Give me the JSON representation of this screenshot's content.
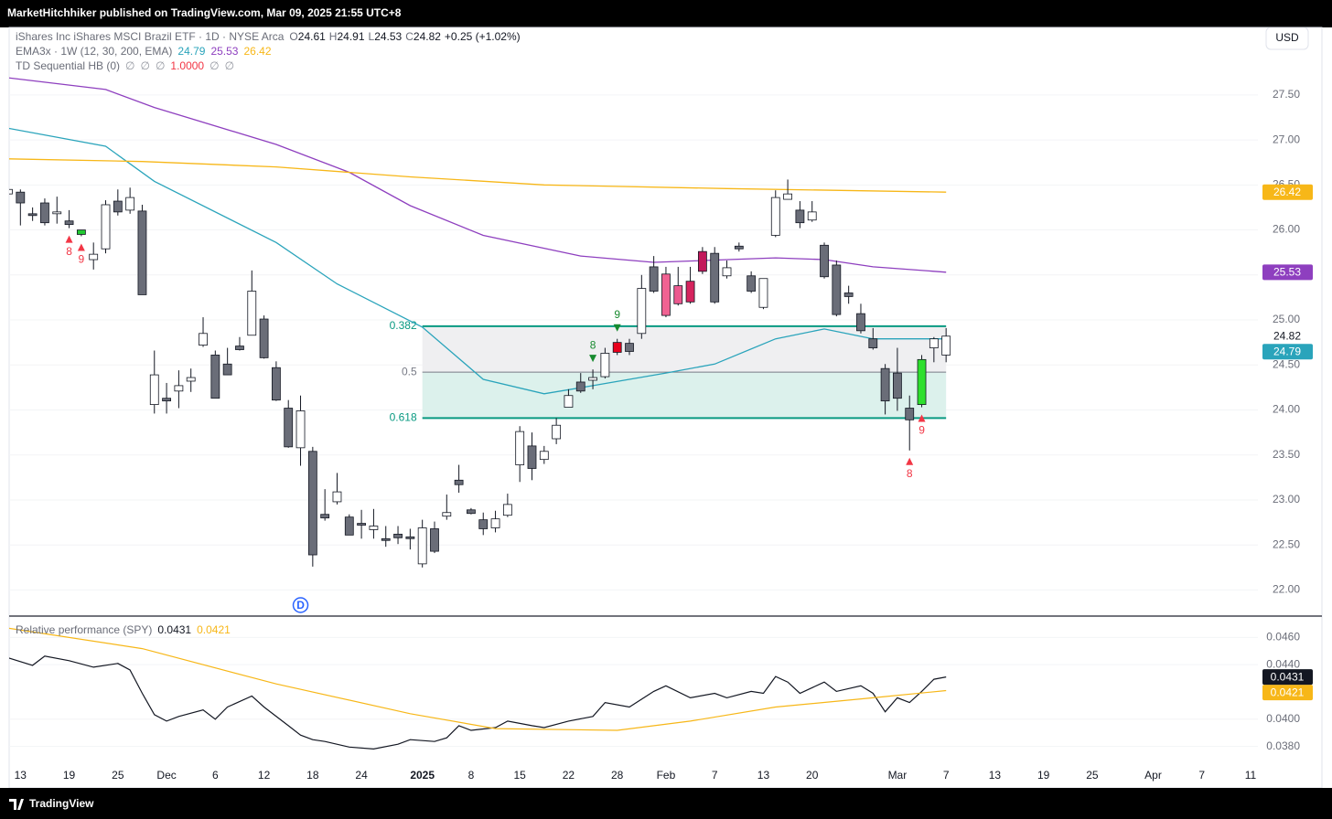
{
  "header": "MarketHitchhiker published on TradingView.com, Mar 09, 2025 21:55 UTC+8",
  "currency": "USD",
  "footer": "TradingView",
  "chart_data": [
    {
      "type": "candlestick",
      "title": "iShares Inc iShares MSCI Brazil ETF · 1D · NYSE Arca",
      "open_label": "O",
      "high_label": "H",
      "low_label": "L",
      "close_label": "C",
      "open": 24.61,
      "high": 24.91,
      "low": 24.53,
      "close": 24.82,
      "change_label": "+0.25 (+1.02%)",
      "ylim": [
        21.72,
        28.25
      ],
      "yticks": [
        {
          "value": 22,
          "label": "22.00"
        },
        {
          "value": 22.5,
          "label": "22.50"
        },
        {
          "value": 23,
          "label": "23.00"
        },
        {
          "value": 23.5,
          "label": "23.50"
        },
        {
          "value": 24,
          "label": "24.00"
        },
        {
          "value": 24.5,
          "label": "24.50"
        },
        {
          "value": 25,
          "label": "25.00"
        },
        {
          "value": 25.5,
          "label": "25.50"
        },
        {
          "value": 26,
          "label": "26.00"
        },
        {
          "value": 26.5,
          "label": "26.50"
        },
        {
          "value": 27,
          "label": "27.00"
        },
        {
          "value": 27.5,
          "label": "27.50"
        }
      ],
      "xlim": [
        0,
        102.6
      ],
      "xticks": [
        {
          "value": 1,
          "label": "13"
        },
        {
          "value": 5,
          "label": "19"
        },
        {
          "value": 9,
          "label": "25"
        },
        {
          "value": 13,
          "label": "Dec"
        },
        {
          "value": 17,
          "label": "6"
        },
        {
          "value": 21,
          "label": "12"
        },
        {
          "value": 25,
          "label": "18"
        },
        {
          "value": 29,
          "label": "24"
        },
        {
          "value": 34,
          "label": "2025"
        },
        {
          "value": 38,
          "label": "8"
        },
        {
          "value": 42,
          "label": "15"
        },
        {
          "value": 46,
          "label": "22"
        },
        {
          "value": 50,
          "label": "28"
        },
        {
          "value": 54,
          "label": "Feb"
        },
        {
          "value": 58,
          "label": "7"
        },
        {
          "value": 62,
          "label": "13"
        },
        {
          "value": 66,
          "label": "20"
        },
        {
          "value": 73,
          "label": "Mar"
        },
        {
          "value": 77,
          "label": "7"
        },
        {
          "value": 81,
          "label": "13"
        },
        {
          "value": 85,
          "label": "19"
        },
        {
          "value": 89,
          "label": "25"
        },
        {
          "value": 94,
          "label": "Apr"
        },
        {
          "value": 98,
          "label": "7"
        },
        {
          "value": 102,
          "label": "11"
        }
      ],
      "up_color": "#ffffff",
      "down_color": "#6a6d78",
      "border_color": "#131722",
      "candles": {
        "open": [
          26.4,
          26.42,
          26.18,
          26.3,
          26.18,
          26.1,
          25.95,
          25.67,
          25.79,
          26.32,
          26.22,
          26.21,
          24.06,
          24.13,
          24.21,
          24.32,
          24.72,
          24.61,
          24.51,
          24.71,
          24.83,
          25.01,
          24.47,
          24.02,
          23.58,
          23.54,
          22.84,
          22.98,
          22.81,
          22.74,
          22.67,
          22.57,
          22.62,
          22.59,
          22.29,
          22.68,
          22.82,
          23.22,
          22.89,
          22.78,
          22.69,
          22.83,
          23.39,
          23.6,
          23.45,
          23.68,
          24.03,
          24.31,
          24.33,
          24.37,
          24.75,
          24.74,
          24.85,
          25.59,
          25.51,
          25.38,
          25.43,
          25.76,
          25.74,
          25.49,
          25.82,
          25.49,
          25.14,
          25.94,
          26.34,
          26.22,
          26.11,
          25.83,
          25.61,
          25.3,
          25.07,
          24.79,
          24.46,
          24.41,
          24.02,
          24.06,
          24.69,
          24.61
        ],
        "high": [
          26.5,
          26.45,
          26.25,
          26.35,
          26.37,
          26.22,
          26.0,
          25.86,
          26.33,
          26.45,
          26.47,
          26.28,
          24.66,
          24.3,
          24.44,
          24.46,
          25.03,
          24.66,
          24.69,
          24.81,
          25.55,
          25.05,
          24.54,
          24.11,
          24.16,
          23.59,
          23.12,
          23.3,
          22.84,
          22.89,
          22.9,
          22.71,
          22.71,
          22.68,
          22.78,
          22.76,
          23.06,
          23.39,
          22.91,
          22.86,
          22.88,
          23.07,
          23.82,
          23.75,
          23.6,
          23.91,
          24.23,
          24.41,
          24.45,
          24.69,
          24.79,
          24.79,
          25.5,
          25.71,
          25.59,
          25.59,
          25.59,
          25.81,
          25.81,
          25.66,
          25.86,
          25.54,
          25.46,
          26.44,
          26.56,
          26.32,
          26.32,
          25.86,
          25.66,
          25.38,
          25.18,
          24.91,
          24.51,
          24.69,
          24.16,
          24.61,
          24.81,
          24.91
        ],
        "low": [
          26.35,
          26.05,
          26.1,
          26.05,
          26.07,
          26.02,
          25.93,
          25.56,
          25.74,
          26.16,
          26.18,
          25.28,
          23.96,
          23.96,
          24.02,
          24.2,
          24.7,
          24.13,
          24.39,
          24.66,
          24.83,
          24.57,
          24.1,
          23.58,
          23.38,
          22.26,
          22.77,
          22.95,
          22.61,
          22.57,
          22.57,
          22.48,
          22.51,
          22.45,
          22.25,
          22.41,
          22.78,
          23.08,
          22.84,
          22.61,
          22.64,
          22.81,
          23.2,
          23.22,
          23.4,
          23.62,
          24.03,
          24.19,
          24.23,
          24.35,
          24.61,
          24.61,
          24.79,
          25.3,
          25.03,
          25.16,
          25.18,
          25.51,
          25.18,
          25.46,
          25.76,
          25.3,
          25.12,
          25.92,
          26.34,
          26.02,
          26.09,
          25.46,
          25.04,
          25.18,
          24.85,
          24.67,
          23.95,
          23.99,
          23.55,
          24.03,
          24.53,
          24.53
        ],
        "close": [
          26.45,
          26.3,
          26.16,
          26.08,
          26.2,
          26.06,
          26.0,
          25.73,
          26.28,
          26.2,
          26.36,
          25.28,
          24.39,
          24.1,
          24.27,
          24.36,
          24.85,
          24.13,
          24.39,
          24.67,
          25.32,
          24.58,
          24.11,
          23.59,
          23.99,
          22.39,
          22.8,
          23.09,
          22.61,
          22.72,
          22.71,
          22.55,
          22.58,
          22.57,
          22.69,
          22.43,
          22.86,
          23.17,
          22.85,
          22.68,
          22.79,
          22.95,
          23.76,
          23.35,
          23.54,
          23.83,
          24.16,
          24.21,
          24.36,
          24.63,
          24.64,
          24.65,
          25.35,
          25.32,
          25.05,
          25.18,
          25.2,
          25.54,
          25.2,
          25.58,
          25.79,
          25.32,
          25.46,
          26.36,
          26.4,
          26.08,
          26.2,
          25.48,
          25.06,
          25.26,
          24.88,
          24.69,
          24.1,
          24.13,
          23.89,
          24.56,
          24.79,
          24.82
        ],
        "highlight": [
          {
            "index": 6,
            "color": "#22c932"
          },
          {
            "index": 50,
            "color": "#e8001c"
          },
          {
            "index": 54,
            "color": "#f06292"
          },
          {
            "index": 55,
            "color": "#ec5a8f"
          },
          {
            "index": 56,
            "color": "#d6245e"
          },
          {
            "index": 57,
            "color": "#c2185b"
          },
          {
            "index": 75,
            "color": "#2ee02e"
          }
        ]
      },
      "ema": {
        "title": "EMA3x · 1W (12, 30, 200, EMA)",
        "series": [
          {
            "color": "#2aa4bb",
            "x": [
              0,
              8,
              12,
              22,
              27,
              34,
              39,
              44,
              48,
              54,
              58,
              63,
              67,
              71,
              77
            ],
            "values": [
              27.13,
              26.93,
              26.54,
              25.86,
              25.4,
              24.92,
              24.34,
              24.18,
              24.27,
              24.41,
              24.51,
              24.79,
              24.9,
              24.79,
              24.79
            ]
          },
          {
            "color": "#8e3fbf",
            "x": [
              0,
              8,
              12,
              22,
              28,
              33,
              39,
              47,
              53,
              63,
              67,
              71,
              77
            ],
            "values": [
              27.69,
              27.56,
              27.36,
              26.95,
              26.64,
              26.27,
              25.94,
              25.71,
              25.64,
              25.69,
              25.67,
              25.59,
              25.53
            ]
          },
          {
            "color": "#f7b718",
            "x": [
              0,
              11,
              22,
              33,
              44,
              59,
              77
            ],
            "values": [
              26.79,
              26.76,
              26.7,
              26.59,
              26.5,
              26.46,
              26.42
            ]
          }
        ]
      },
      "td": {
        "title": "TD Sequential HB (0)",
        "legend_values": [
          {
            "text": "∅",
            "color": "#9598a1"
          },
          {
            "text": "∅",
            "color": "#9598a1"
          },
          {
            "text": "∅",
            "color": "#9598a1"
          },
          {
            "text": "1.0000",
            "color": "#f23645"
          },
          {
            "text": "∅",
            "color": "#9598a1"
          },
          {
            "text": "∅",
            "color": "#9598a1"
          }
        ],
        "labels": [
          {
            "index": 5,
            "label": "8",
            "position": "below",
            "color": "#f23645"
          },
          {
            "index": 6,
            "label": "9",
            "position": "below",
            "color": "#f23645"
          },
          {
            "index": 48,
            "label": "8",
            "position": "above",
            "color": "#178a2e"
          },
          {
            "index": 50,
            "label": "9",
            "position": "above",
            "color": "#178a2e"
          },
          {
            "index": 74,
            "label": "8",
            "position": "below",
            "color": "#f23645"
          },
          {
            "index": 75,
            "label": "9",
            "position": "below",
            "color": "#f23645"
          }
        ]
      },
      "fib": {
        "x": [
          34,
          77
        ],
        "levels": [
          {
            "value": 24.93,
            "label": "0.382",
            "color": "#089981"
          },
          {
            "value": 24.42,
            "label": "0.5",
            "color": "#787b86"
          },
          {
            "value": 23.91,
            "label": "0.618",
            "color": "#089981"
          }
        ],
        "fills": [
          "#efeff1",
          "#dcf1ec"
        ]
      },
      "dividend": {
        "index": 24,
        "label": "D",
        "color": "#2962ff"
      }
    },
    {
      "type": "line",
      "title": "Relative performance (SPY)",
      "ylim": [
        0.0369,
        0.0475
      ],
      "yticks": [
        {
          "value": 0.038,
          "label": "0.0380"
        },
        {
          "value": 0.04,
          "label": "0.0400"
        },
        {
          "value": 0.044,
          "label": "0.0440"
        },
        {
          "value": 0.046,
          "label": "0.0460"
        }
      ],
      "series": [
        {
          "color": "#131722",
          "x": [
            0,
            2,
            3,
            5,
            7,
            9,
            10,
            11,
            12,
            13,
            14,
            16,
            17,
            18,
            20,
            21,
            23,
            24,
            25,
            26,
            28,
            30,
            32,
            33,
            35,
            36,
            37,
            38,
            40,
            41,
            43,
            44,
            46,
            48,
            49,
            51,
            53,
            54,
            56,
            58,
            59,
            61,
            62,
            63,
            64,
            65,
            67,
            68,
            70,
            71,
            72,
            73,
            74,
            75,
            76,
            77
          ],
          "values": [
            0.0445,
            0.04395,
            0.04463,
            0.04429,
            0.04382,
            0.04409,
            0.04361,
            0.0419,
            0.04033,
            0.03986,
            0.0402,
            0.04068,
            0.04,
            0.04089,
            0.0417,
            0.04089,
            0.03952,
            0.03883,
            0.0385,
            0.03836,
            0.03795,
            0.03781,
            0.03816,
            0.0385,
            0.03836,
            0.03863,
            0.03952,
            0.03918,
            0.03938,
            0.03986,
            0.03952,
            0.03938,
            0.03986,
            0.0402,
            0.04122,
            0.04089,
            0.04204,
            0.04245,
            0.04157,
            0.0419,
            0.04157,
            0.04204,
            0.0419,
            0.04313,
            0.04272,
            0.0419,
            0.04272,
            0.04204,
            0.04245,
            0.0419,
            0.04054,
            0.04157,
            0.04122,
            0.04204,
            0.04293,
            0.0431
          ]
        },
        {
          "color": "#f7b718",
          "x": [
            0,
            11,
            22,
            33,
            40,
            50,
            56,
            63,
            71,
            77
          ],
          "values": [
            0.04668,
            0.04518,
            0.04259,
            0.0404,
            0.03931,
            0.03918,
            0.03986,
            0.04089,
            0.04157,
            0.0421
          ]
        }
      ]
    }
  ]
}
